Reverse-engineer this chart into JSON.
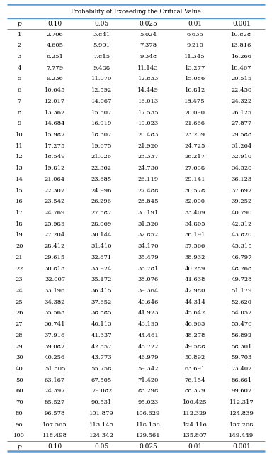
{
  "title": "Probability of Exceeding the Critical Value",
  "columns": [
    "p",
    "0.10",
    "0.05",
    "0.025",
    "0.01",
    "0.001"
  ],
  "rows": [
    [
      1,
      2.706,
      3.841,
      5.024,
      6.635,
      10.828
    ],
    [
      2,
      4.605,
      5.991,
      7.378,
      9.21,
      13.816
    ],
    [
      3,
      6.251,
      7.815,
      9.348,
      11.345,
      16.266
    ],
    [
      4,
      7.779,
      9.488,
      11.143,
      13.277,
      18.467
    ],
    [
      5,
      9.236,
      11.07,
      12.833,
      15.086,
      20.515
    ],
    [
      6,
      10.645,
      12.592,
      14.449,
      16.812,
      22.458
    ],
    [
      7,
      12.017,
      14.067,
      16.013,
      18.475,
      24.322
    ],
    [
      8,
      13.362,
      15.507,
      17.535,
      20.09,
      26.125
    ],
    [
      9,
      14.684,
      16.919,
      19.023,
      21.666,
      27.877
    ],
    [
      10,
      15.987,
      18.307,
      20.483,
      23.209,
      29.588
    ],
    [
      11,
      17.275,
      19.675,
      21.92,
      24.725,
      31.264
    ],
    [
      12,
      18.549,
      21.026,
      23.337,
      26.217,
      32.91
    ],
    [
      13,
      19.812,
      22.362,
      24.736,
      27.688,
      34.528
    ],
    [
      14,
      21.064,
      23.685,
      26.119,
      29.141,
      36.123
    ],
    [
      15,
      22.307,
      24.996,
      27.488,
      30.578,
      37.697
    ],
    [
      16,
      23.542,
      26.296,
      28.845,
      32.0,
      39.252
    ],
    [
      17,
      24.769,
      27.587,
      30.191,
      33.409,
      40.79
    ],
    [
      18,
      25.989,
      28.869,
      31.526,
      34.805,
      42.312
    ],
    [
      19,
      27.204,
      30.144,
      32.852,
      36.191,
      43.82
    ],
    [
      20,
      28.412,
      31.41,
      34.17,
      37.566,
      45.315
    ],
    [
      21,
      29.615,
      32.671,
      35.479,
      38.932,
      46.797
    ],
    [
      22,
      30.813,
      33.924,
      36.781,
      40.289,
      48.268
    ],
    [
      23,
      32.007,
      35.172,
      38.076,
      41.638,
      49.728
    ],
    [
      24,
      33.196,
      36.415,
      39.364,
      42.98,
      51.179
    ],
    [
      25,
      34.382,
      37.652,
      40.646,
      44.314,
      52.62
    ],
    [
      26,
      35.563,
      38.885,
      41.923,
      45.642,
      54.052
    ],
    [
      27,
      36.741,
      40.113,
      43.195,
      46.963,
      55.476
    ],
    [
      28,
      37.916,
      41.337,
      44.461,
      48.278,
      56.892
    ],
    [
      29,
      39.087,
      42.557,
      45.722,
      49.588,
      58.301
    ],
    [
      30,
      40.256,
      43.773,
      46.979,
      50.892,
      59.703
    ],
    [
      40,
      51.805,
      55.758,
      59.342,
      63.691,
      73.402
    ],
    [
      50,
      63.167,
      67.505,
      71.42,
      76.154,
      86.661
    ],
    [
      60,
      74.397,
      79.082,
      83.298,
      88.379,
      99.607
    ],
    [
      70,
      85.527,
      90.531,
      95.023,
      100.425,
      112.317
    ],
    [
      80,
      96.578,
      101.879,
      106.629,
      112.329,
      124.839
    ],
    [
      90,
      107.565,
      113.145,
      118.136,
      124.116,
      137.208
    ],
    [
      100,
      118.498,
      124.342,
      129.561,
      135.807,
      149.449
    ]
  ],
  "bg_color": "#ffffff",
  "border_color": "#5B9BD5",
  "text_color": "#000000",
  "title_color": "#000000",
  "fig_width": 3.84,
  "fig_height": 6.47,
  "dpi": 100
}
